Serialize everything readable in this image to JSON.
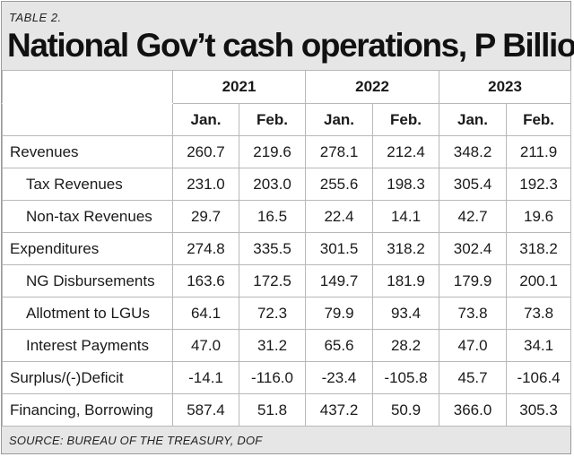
{
  "label": "TABLE 2.",
  "title": "National Gov’t cash operations, P Billion",
  "years": [
    "2021",
    "2022",
    "2023"
  ],
  "months": [
    "Jan.",
    "Feb.",
    "Jan.",
    "Feb.",
    "Jan.",
    "Feb."
  ],
  "rows": [
    {
      "label": "Revenues",
      "indent": false,
      "values": [
        "260.7",
        "219.6",
        "278.1",
        "212.4",
        "348.2",
        "211.9"
      ]
    },
    {
      "label": "Tax Revenues",
      "indent": true,
      "values": [
        "231.0",
        "203.0",
        "255.6",
        "198.3",
        "305.4",
        "192.3"
      ]
    },
    {
      "label": "Non-tax Revenues",
      "indent": true,
      "values": [
        "29.7",
        "16.5",
        "22.4",
        "14.1",
        "42.7",
        "19.6"
      ]
    },
    {
      "label": "Expenditures",
      "indent": false,
      "values": [
        "274.8",
        "335.5",
        "301.5",
        "318.2",
        "302.4",
        "318.2"
      ]
    },
    {
      "label": "NG Disbursements",
      "indent": true,
      "values": [
        "163.6",
        "172.5",
        "149.7",
        "181.9",
        "179.9",
        "200.1"
      ]
    },
    {
      "label": "Allotment to LGUs",
      "indent": true,
      "values": [
        "64.1",
        "72.3",
        "79.9",
        "93.4",
        "73.8",
        "73.8"
      ]
    },
    {
      "label": "Interest Payments",
      "indent": true,
      "values": [
        "47.0",
        "31.2",
        "65.6",
        "28.2",
        "47.0",
        "34.1"
      ]
    },
    {
      "label": "Surplus/(-)Deficit",
      "indent": false,
      "values": [
        "-14.1",
        "-116.0",
        "-23.4",
        "-105.8",
        "45.7",
        "-106.4"
      ]
    },
    {
      "label": "Financing, Borrowing",
      "indent": false,
      "values": [
        "587.4",
        "51.8",
        "437.2",
        "50.9",
        "366.0",
        "305.3"
      ]
    }
  ],
  "source": "SOURCE: BUREAU OF THE TREASURY, DOF"
}
